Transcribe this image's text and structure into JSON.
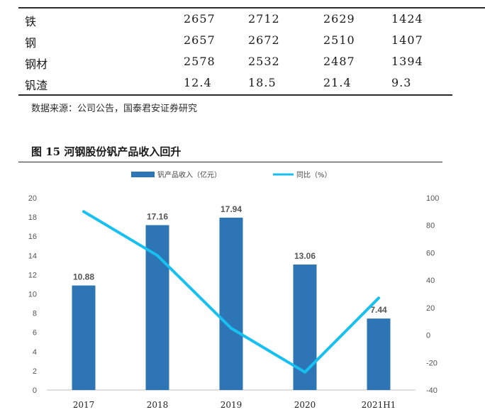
{
  "table": {
    "rows": [
      {
        "name": "铁",
        "values": [
          "2657",
          "2712",
          "2629",
          "1424"
        ]
      },
      {
        "name": "钢",
        "values": [
          "2657",
          "2672",
          "2510",
          "1407"
        ]
      },
      {
        "name": "钢材",
        "values": [
          "2578",
          "2532",
          "2487",
          "1394"
        ]
      },
      {
        "name": "钒渣",
        "values": [
          "12.4",
          "18.5",
          "21.4",
          "9.3"
        ]
      }
    ]
  },
  "source_note": "数据来源：公司公告，国泰君安证券研究",
  "figure_title": "图 15 河钢股份钒产品收入回升",
  "chart_data": {
    "type": "bar",
    "categories": [
      "2017",
      "2018",
      "2019",
      "2020",
      "2021H1"
    ],
    "series": [
      {
        "name": "钒产品收入（亿元）",
        "type": "bar",
        "axis": "left",
        "values": [
          10.88,
          17.16,
          17.94,
          13.06,
          7.44
        ],
        "labels": [
          "10.88",
          "17.16",
          "17.94",
          "13.06",
          "7.44"
        ]
      },
      {
        "name": "同比（%）",
        "type": "line",
        "axis": "right",
        "values": [
          90,
          58,
          5,
          -27,
          27
        ]
      }
    ],
    "y_left": {
      "ylim": [
        0,
        20
      ],
      "ticks": [
        "0",
        "2",
        "4",
        "6",
        "8",
        "10",
        "12",
        "14",
        "16",
        "18",
        "20"
      ]
    },
    "y_right": {
      "ylim": [
        -40,
        100
      ],
      "ticks": [
        "-40",
        "-20",
        "0",
        "20",
        "40",
        "60",
        "80",
        "100"
      ]
    },
    "legend_position": "top-center",
    "grid": false,
    "colors": {
      "bar": "#2e75b6",
      "line": "#17c0f0"
    }
  }
}
